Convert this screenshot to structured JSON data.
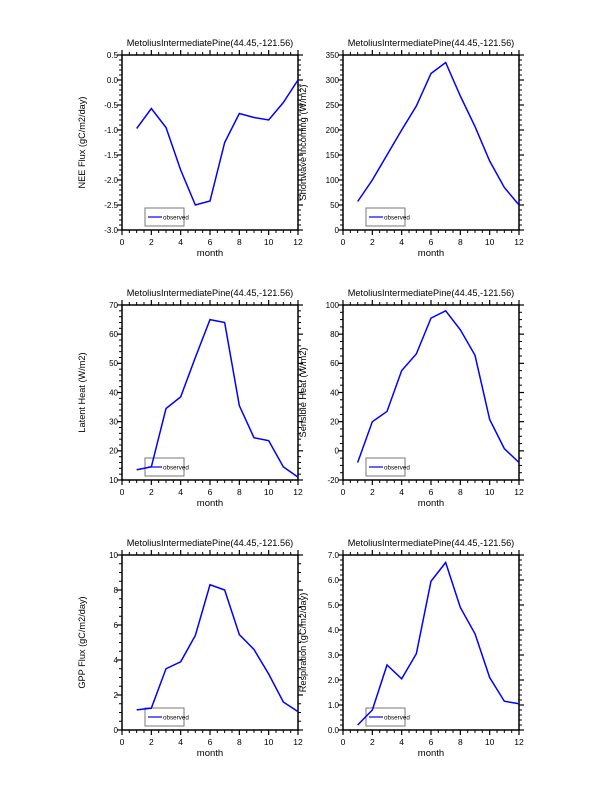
{
  "page": {
    "background": "#ffffff",
    "site_label": "MetoliusIntermediatePine(44.45,-121.56)"
  },
  "chart_data": [
    {
      "type": "line",
      "title": "MetoliusIntermediatePine(44.45,-121.56)",
      "xlabel": "month",
      "ylabel": "NEE Flux (gC/m2/day)",
      "x": [
        1,
        2,
        3,
        4,
        5,
        6,
        7,
        8,
        9,
        10,
        11,
        12
      ],
      "values": [
        -0.97,
        -0.57,
        -0.95,
        -1.8,
        -2.5,
        -2.42,
        -1.25,
        -0.67,
        -0.75,
        -0.8,
        -0.45,
        0.0
      ],
      "xlim": [
        0,
        12
      ],
      "xtick_step": 2,
      "x_minor_divs": 4,
      "ylim": [
        -3.0,
        0.5
      ],
      "ytick_step": 0.5,
      "ytick_decimals": 1,
      "y_minor_divs": 5,
      "grid": false,
      "legend": {
        "label": "observed",
        "position": "lower-left"
      },
      "line_color": "#0000ff"
    },
    {
      "type": "line",
      "title": "MetoliusIntermediatePine(44.45,-121.56)",
      "xlabel": "month",
      "ylabel": "Shortwave Incoming (W/m2)",
      "x": [
        1,
        2,
        3,
        4,
        5,
        6,
        7,
        8,
        9,
        10,
        11,
        12
      ],
      "values": [
        57,
        100,
        150,
        200,
        248,
        313,
        335,
        268,
        207,
        138,
        85,
        50
      ],
      "xlim": [
        0,
        12
      ],
      "xtick_step": 2,
      "x_minor_divs": 4,
      "ylim": [
        0,
        350
      ],
      "ytick_step": 50,
      "ytick_decimals": 0,
      "y_minor_divs": 5,
      "grid": false,
      "legend": {
        "label": "observed",
        "position": "lower-left"
      },
      "line_color": "#0000ff"
    },
    {
      "type": "line",
      "title": "MetoliusIntermediatePine(44.45,-121.56)",
      "xlabel": "month",
      "ylabel": "Latent Heat (W/m2)",
      "x": [
        1,
        2,
        3,
        4,
        5,
        6,
        7,
        8,
        9,
        10,
        11,
        12
      ],
      "values": [
        13.5,
        14.5,
        34.5,
        38.5,
        52,
        65,
        64,
        35.5,
        24.5,
        23.5,
        14.5,
        11
      ],
      "xlim": [
        0,
        12
      ],
      "xtick_step": 2,
      "x_minor_divs": 4,
      "ylim": [
        10,
        70
      ],
      "ytick_step": 10,
      "ytick_decimals": 0,
      "y_minor_divs": 5,
      "grid": false,
      "legend": {
        "label": "observed",
        "position": "lower-left"
      },
      "line_color": "#0000ff"
    },
    {
      "type": "line",
      "title": "MetoliusIntermediatePine(44.45,-121.56)",
      "xlabel": "month",
      "ylabel": "Sensible Heat (W/m2)",
      "x": [
        1,
        2,
        3,
        4,
        5,
        6,
        7,
        8,
        9,
        10,
        11,
        12
      ],
      "values": [
        -8,
        20,
        27,
        55,
        66.5,
        91,
        96,
        83,
        65.5,
        21.5,
        1.5,
        -8
      ],
      "xlim": [
        0,
        12
      ],
      "xtick_step": 2,
      "x_minor_divs": 4,
      "ylim": [
        -20,
        100
      ],
      "ytick_step": 20,
      "ytick_decimals": 0,
      "y_minor_divs": 4,
      "grid": false,
      "legend": {
        "label": "observed",
        "position": "lower-left"
      },
      "line_color": "#0000ff"
    },
    {
      "type": "line",
      "title": "MetoliusIntermediatePine(44.45,-121.56)",
      "xlabel": "month",
      "ylabel": "GPP Flux (gC/m2/day)",
      "x": [
        1,
        2,
        3,
        4,
        5,
        6,
        7,
        8,
        9,
        10,
        11,
        12
      ],
      "values": [
        1.15,
        1.25,
        3.5,
        3.9,
        5.4,
        8.3,
        8.0,
        5.45,
        4.6,
        3.2,
        1.6,
        1.05
      ],
      "xlim": [
        0,
        12
      ],
      "xtick_step": 2,
      "x_minor_divs": 4,
      "ylim": [
        0,
        10
      ],
      "ytick_step": 2,
      "ytick_decimals": 0,
      "y_minor_divs": 4,
      "grid": false,
      "legend": {
        "label": "observed",
        "position": "lower-left"
      },
      "line_color": "#0000ff"
    },
    {
      "type": "line",
      "title": "MetoliusIntermediatePine(44.45,-121.56)",
      "xlabel": "month",
      "ylabel": "Respiration (gC/m2/day)",
      "x": [
        1,
        2,
        3,
        4,
        5,
        6,
        7,
        8,
        9,
        10,
        11,
        12
      ],
      "values": [
        0.2,
        0.8,
        2.6,
        2.05,
        3.05,
        5.95,
        6.7,
        4.9,
        3.85,
        2.1,
        1.15,
        1.05
      ],
      "xlim": [
        0,
        12
      ],
      "xtick_step": 2,
      "x_minor_divs": 4,
      "ylim": [
        0.0,
        7.0
      ],
      "ytick_step": 1.0,
      "ytick_decimals": 1,
      "y_minor_divs": 5,
      "grid": false,
      "legend": {
        "label": "observed",
        "position": "lower-left"
      },
      "line_color": "#0000ff"
    }
  ]
}
